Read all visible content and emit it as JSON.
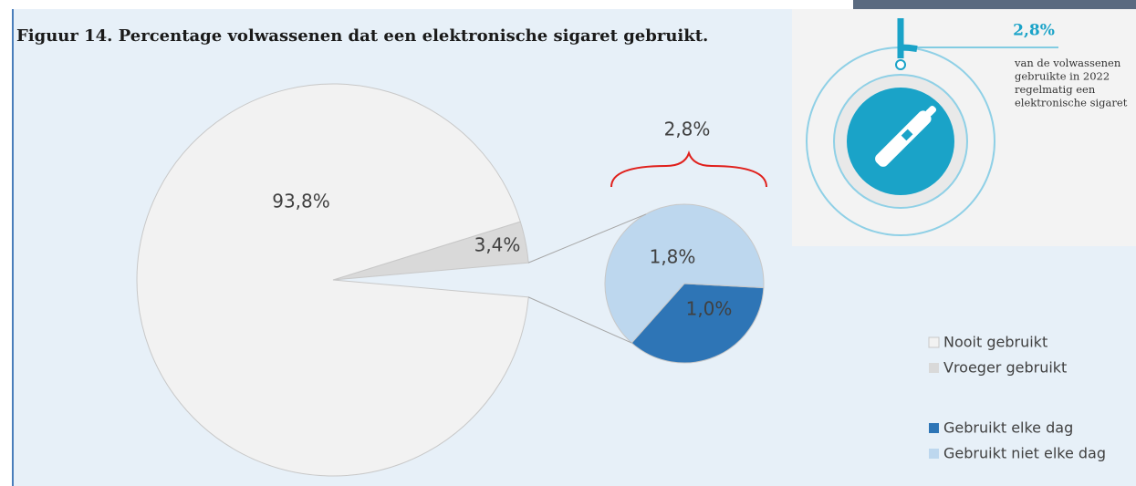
{
  "chart_data": {
    "type": "pie-of-pie",
    "title": "Figuur 14. Percentage volwassenen dat een elektronische sigaret gebruikt.",
    "slices": [
      {
        "name": "Nooit gebruikt",
        "value": 93.8,
        "value_label": "93,8%",
        "color": "#f2f2f2"
      },
      {
        "name": "Vroeger gebruikt",
        "value": 3.4,
        "value_label": "3,4%",
        "color": "#d9d9d9"
      }
    ],
    "other": {
      "value": 2.8,
      "value_label": "2,8%",
      "slices": [
        {
          "name": "Gebruikt elke dag",
          "value": 1.0,
          "value_label": "1,0%",
          "color": "#2e75b6"
        },
        {
          "name": "Gebruikt niet elke dag",
          "value": 1.8,
          "value_label": "1,8%",
          "color": "#bdd7ee"
        }
      ]
    }
  },
  "infographic": {
    "value": 2.8,
    "value_label": "2,8%",
    "color": "#1aa3c8",
    "caption": [
      "van de volwassenen",
      "gebruikte in 2022",
      "regelmatig een",
      "elektronische sigaret"
    ]
  }
}
